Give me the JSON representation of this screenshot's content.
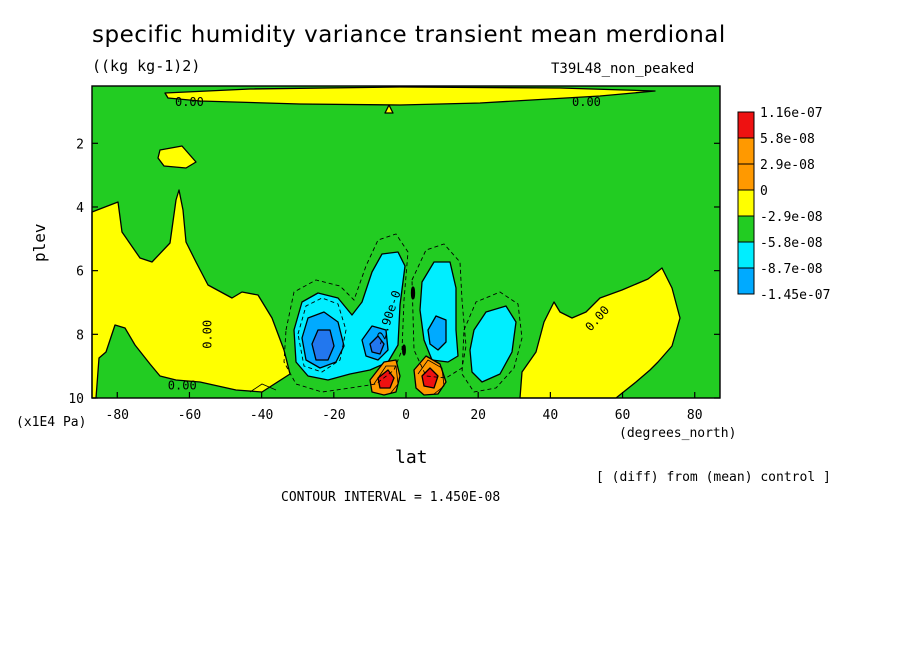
{
  "header": {
    "title": "specific humidity variance transient mean merdional",
    "units": "((kg kg-1)2)",
    "run_name": "T39L48_non_peaked"
  },
  "footer": {
    "diff_note": "[ (diff) from (mean) control ]",
    "contour_interval": "CONTOUR INTERVAL = 1.450E-08"
  },
  "colors": {
    "green": "#22cc22",
    "yellow": "#ffff00",
    "orange": "#ff9900",
    "red": "#ee1111",
    "cyan": "#00eeff",
    "lightblue": "#00aaff",
    "blue": "#2277ee"
  },
  "chart_data": {
    "type": "contour",
    "xlabel": "lat",
    "x_units": "(degrees_north)",
    "ylabel": "plev",
    "y_units": "(x1E4 Pa)",
    "xlim": [
      -87,
      87
    ],
    "ylim": [
      10,
      0.2
    ],
    "x_ticks": [
      -80,
      -60,
      -40,
      -20,
      0,
      20,
      40,
      60,
      80
    ],
    "y_ticks": [
      2,
      4,
      6,
      8,
      10
    ],
    "contour_labels": [
      {
        "text": "0.00",
        "x": -60,
        "y": 0.7
      },
      {
        "text": "0.00",
        "x": 50,
        "y": 0.7
      },
      {
        "text": "0.00",
        "x": -62,
        "y": 9.6
      },
      {
        "text": "0.00",
        "x": -55,
        "y": 8.0
      },
      {
        "text": "0.00",
        "x": 53,
        "y": 7.5
      },
      {
        "text": "-2.90e-0",
        "x": -5,
        "y": 7.5
      }
    ],
    "legend": {
      "entries": [
        {
          "label": "1.16e-07",
          "color": "#ee1111"
        },
        {
          "label": "5.8e-08",
          "color": "#ff9900"
        },
        {
          "label": "2.9e-08",
          "color": "#ff9900"
        },
        {
          "label": "0",
          "color": "#ffff00"
        },
        {
          "label": "-2.9e-08",
          "color": "#22cc22"
        },
        {
          "label": "-5.8e-08",
          "color": "#00eeff"
        },
        {
          "label": "-8.7e-08",
          "color": "#00aaff"
        },
        {
          "label": "-1.45e-07",
          "color": "#2277ee"
        }
      ]
    }
  }
}
